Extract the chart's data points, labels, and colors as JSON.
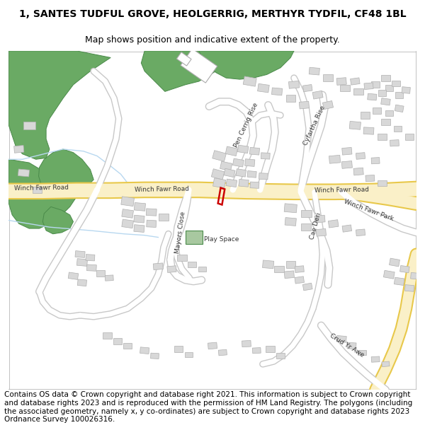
{
  "title_line1": "1, SANTES TUDFUL GROVE, HEOLGERRIG, MERTHYR TYDFIL, CF48 1BL",
  "title_line2": "Map shows position and indicative extent of the property.",
  "footer_text": "Contains OS data © Crown copyright and database right 2021. This information is subject to Crown copyright and database rights 2023 and is reproduced with the permission of HM Land Registry. The polygons (including the associated geometry, namely x, y co-ordinates) are subject to Crown copyright and database rights 2023 Ordnance Survey 100026316.",
  "bg_color": "#ffffff",
  "map_bg": "#f7f7f7",
  "road_A_fill": "#faf0c8",
  "road_A_border": "#e8c84a",
  "road_minor_fill": "#ffffff",
  "road_minor_border": "#c8c8c8",
  "green_color": "#6aaa64",
  "green_border": "#4a8a4a",
  "play_color": "#a8c8a0",
  "play_border": "#4a8a4a",
  "building_fill": "#d8d8d8",
  "building_border": "#b0b0b0",
  "water_color": "#d0eaf8",
  "property_color": "#cc0000",
  "title_fontsize": 10,
  "subtitle_fontsize": 9,
  "footer_fontsize": 7.5,
  "label_fontsize": 6.5
}
